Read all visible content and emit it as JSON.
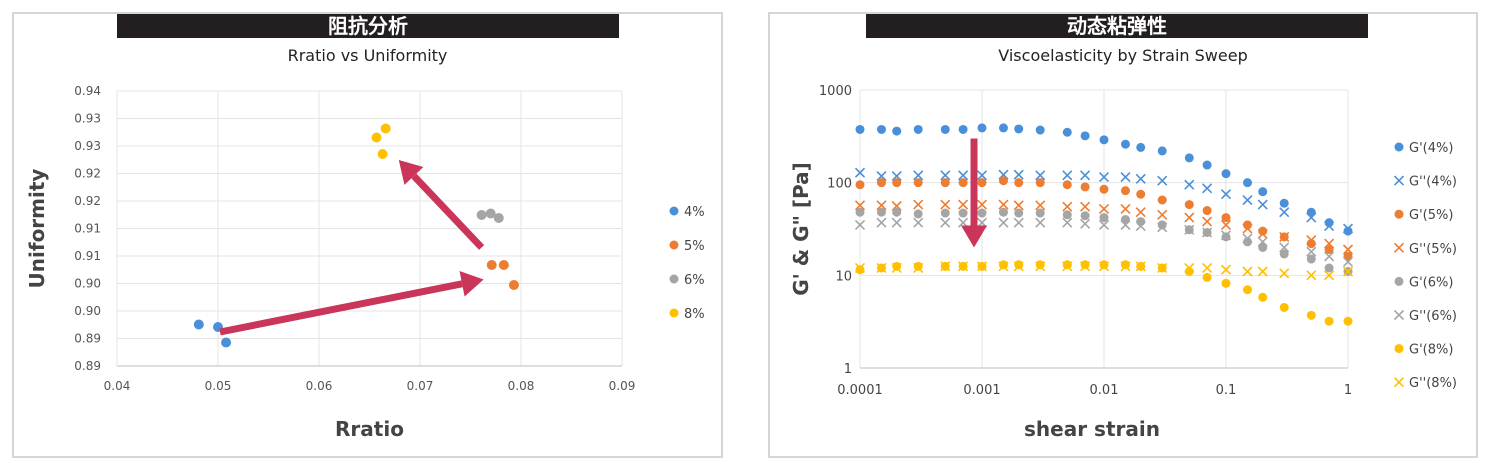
{
  "chart_data": [
    {
      "type": "scatter",
      "banner": "阻抗分析",
      "title": "Rratio vs Uniformity",
      "xlabel": "Rratio",
      "ylabel": "Uniformity",
      "xlim": [
        0.04,
        0.09
      ],
      "ylim": [
        0.885,
        0.94
      ],
      "xticks": [
        "0.04",
        "0.05",
        "0.06",
        "0.07",
        "0.08",
        "0.09"
      ],
      "yticks": [
        "0.89",
        "0.89",
        "0.90",
        "0.90",
        "0.91",
        "0.91",
        "0.92",
        "0.92",
        "0.93",
        "0.93",
        "0.94"
      ],
      "grid": true,
      "legend_position": "right",
      "series": [
        {
          "name": "4%",
          "color": "#4a90d9",
          "points": [
            [
              0.0481,
              0.8933
            ],
            [
              0.05,
              0.8928
            ],
            [
              0.0508,
              0.8897
            ]
          ]
        },
        {
          "name": "5%",
          "color": "#ed7d31",
          "points": [
            [
              0.0771,
              0.9052
            ],
            [
              0.0783,
              0.9052
            ],
            [
              0.0793,
              0.9012
            ]
          ]
        },
        {
          "name": "6%",
          "color": "#a5a5a5",
          "points": [
            [
              0.0761,
              0.9152
            ],
            [
              0.077,
              0.9155
            ],
            [
              0.0778,
              0.9146
            ]
          ]
        },
        {
          "name": "8%",
          "color": "#ffc000",
          "points": [
            [
              0.0657,
              0.9307
            ],
            [
              0.0666,
              0.9325
            ],
            [
              0.0663,
              0.9274
            ]
          ]
        }
      ],
      "arrows": [
        {
          "from": [
            0.0502,
            0.8918
          ],
          "to": [
            0.0763,
            0.9023
          ]
        },
        {
          "from": [
            0.0761,
            0.9087
          ],
          "to": [
            0.0679,
            0.9262
          ]
        }
      ]
    },
    {
      "type": "scatter",
      "banner": "动态粘弹性",
      "title": "Viscoelasticity by Strain Sweep",
      "xlabel": "shear strain",
      "ylabel": "G' & G\" [Pa]",
      "x_scale": "log",
      "y_scale": "log",
      "xlim": [
        0.0001,
        1
      ],
      "ylim": [
        1,
        1000
      ],
      "xticks": [
        "0.0001",
        "0.001",
        "0.01",
        "0.1",
        "1"
      ],
      "yticks": [
        "1",
        "10",
        "100",
        "1000"
      ],
      "grid": true,
      "legend_position": "right",
      "x": [
        0.0001,
        0.00015,
        0.0002,
        0.0003,
        0.0005,
        0.0007,
        0.001,
        0.0015,
        0.002,
        0.003,
        0.005,
        0.007,
        0.01,
        0.015,
        0.02,
        0.03,
        0.05,
        0.07,
        0.1,
        0.15,
        0.2,
        0.3,
        0.5,
        0.7,
        1
      ],
      "series": [
        {
          "name": "G'(4%)",
          "marker": "dot",
          "color": "#4a90d9",
          "values": [
            375,
            375,
            360,
            375,
            375,
            375,
            390,
            390,
            380,
            370,
            350,
            320,
            290,
            260,
            240,
            220,
            185,
            155,
            125,
            100,
            80,
            60,
            48,
            37,
            30
          ]
        },
        {
          "name": "G''(4%)",
          "marker": "x",
          "color": "#4a90d9",
          "values": [
            128,
            118,
            118,
            120,
            120,
            120,
            120,
            122,
            122,
            120,
            120,
            120,
            115,
            115,
            110,
            105,
            95,
            87,
            75,
            65,
            58,
            48,
            42,
            34,
            32
          ]
        },
        {
          "name": "G'(5%)",
          "marker": "dot",
          "color": "#ed7d31",
          "values": [
            95,
            100,
            100,
            100,
            100,
            100,
            100,
            105,
            100,
            100,
            95,
            90,
            85,
            82,
            75,
            65,
            58,
            50,
            42,
            35,
            30,
            26,
            22,
            19,
            16
          ]
        },
        {
          "name": "G''(5%)",
          "marker": "x",
          "color": "#ed7d31",
          "values": [
            57,
            57,
            56,
            58,
            58,
            58,
            58,
            58,
            57,
            57,
            55,
            55,
            52,
            52,
            48,
            45,
            42,
            38,
            35,
            32,
            28,
            26,
            24,
            22,
            19
          ]
        },
        {
          "name": "G'(6%)",
          "marker": "dot",
          "color": "#a5a5a5",
          "values": [
            48,
            48,
            48,
            46,
            47,
            47,
            47,
            48,
            47,
            47,
            45,
            44,
            42,
            40,
            38,
            35,
            31,
            29,
            26,
            23,
            20,
            17,
            15,
            12,
            11
          ]
        },
        {
          "name": "G''(6%)",
          "marker": "x",
          "color": "#a5a5a5",
          "values": [
            35,
            37,
            37,
            37,
            37,
            37,
            37,
            37,
            37,
            37,
            37,
            36,
            35,
            35,
            34,
            33,
            31,
            29,
            27,
            25,
            23,
            20,
            18,
            16,
            14
          ]
        },
        {
          "name": "G'(8%)",
          "marker": "dot",
          "color": "#ffc000",
          "values": [
            11.5,
            12,
            12.5,
            12.5,
            12.5,
            12.5,
            12.5,
            13,
            13,
            13,
            13,
            13,
            13,
            13,
            12.5,
            12,
            11,
            9.5,
            8.2,
            7,
            5.8,
            4.5,
            3.7,
            3.2,
            3.2
          ]
        },
        {
          "name": "G''(8%)",
          "marker": "x",
          "color": "#ffc000",
          "values": [
            12,
            12,
            12,
            12,
            12.5,
            12.5,
            12.5,
            12.5,
            12.5,
            12.5,
            12.5,
            12.5,
            12.5,
            12.5,
            12.5,
            12,
            12,
            12,
            11.5,
            11,
            11,
            10.5,
            10,
            10,
            11
          ]
        }
      ],
      "arrows": [
        {
          "from": [
            0.00086,
            300
          ],
          "to": [
            0.00086,
            20
          ]
        }
      ]
    }
  ]
}
